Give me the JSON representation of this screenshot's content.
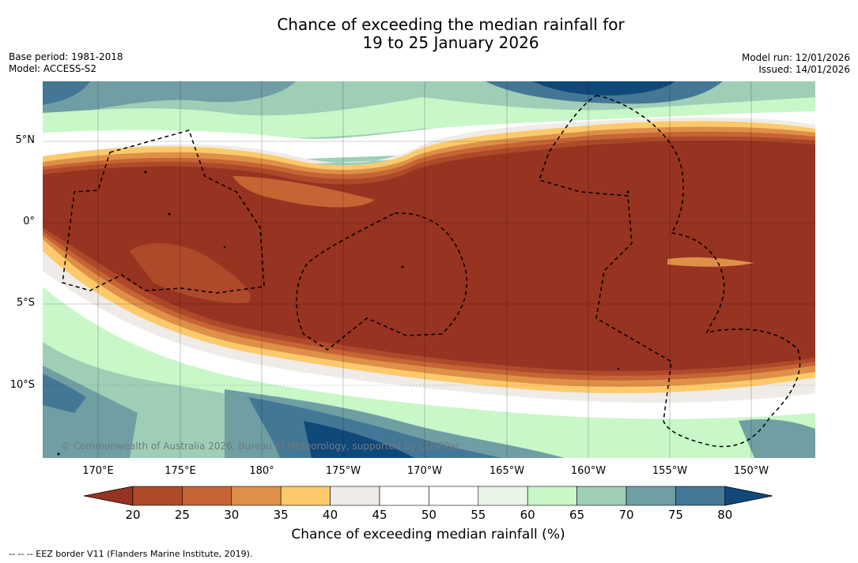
{
  "title": {
    "line1": "Chance of exceeding the median rainfall for",
    "line2": "19 to 25 January 2026"
  },
  "meta": {
    "base_period": "Base period: 1981-2018",
    "model": "Model: ACCESS-S2",
    "model_run": "Model run: 12/01/2026",
    "issued": "Issued: 14/01/2026"
  },
  "axes": {
    "lat_labels": [
      "5°N",
      "0°",
      "5°S",
      "10°S"
    ],
    "lon_labels": [
      "170°E",
      "175°E",
      "180°",
      "175°W",
      "170°W",
      "165°W",
      "160°W",
      "155°W",
      "150°W"
    ]
  },
  "copyright": "© Commonwealth of Australia 2026, Bureau of Meteorology, supported by COSPPac",
  "legend": {
    "title": "Chance of exceeding median rainfall (%)",
    "ticks": [
      "20",
      "25",
      "30",
      "35",
      "40",
      "45",
      "50",
      "55",
      "60",
      "65",
      "70",
      "75",
      "80"
    ],
    "colors": [
      "#973321",
      "#ae4a2a",
      "#c76434",
      "#de9048",
      "#fdca6b",
      "#efebe6",
      "#ffffff",
      "#ffffff",
      "#eaf5ea",
      "#c8f7c8",
      "#9fceb7",
      "#6f9fa3",
      "#447795",
      "#10487a"
    ]
  },
  "footnote": "--  --  -- EEZ border V11 (Flanders Marine Institute, 2019)."
}
